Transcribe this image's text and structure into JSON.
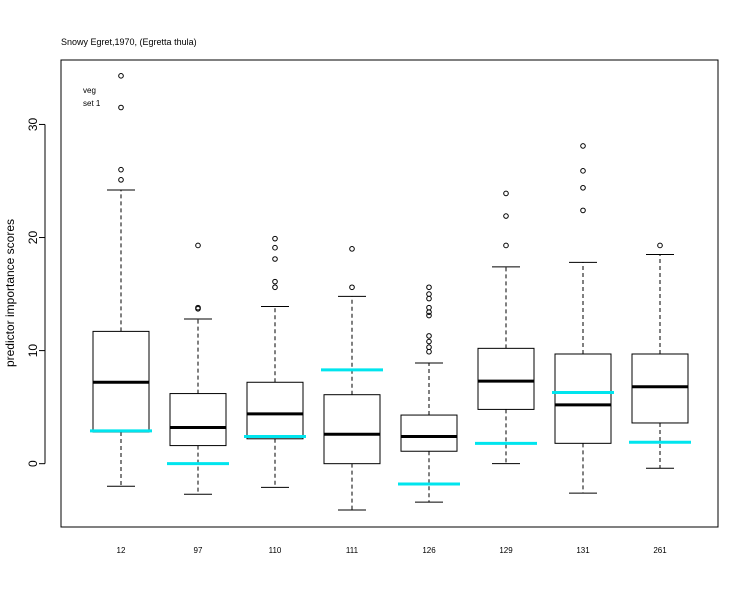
{
  "chart_data": {
    "type": "boxplot",
    "title": "Snowy Egret,1970, (Egretta thula)",
    "ylabel": "predictor importance scores",
    "xlabel": "",
    "ylim": [
      -5.6,
      35.7
    ],
    "yticks": [
      0,
      10,
      20,
      30
    ],
    "annotation": [
      "veg",
      "set 1"
    ],
    "annotation_color": "#0000cc",
    "reference_color": "#00e5ee",
    "categories": [
      "12",
      "97",
      "110",
      "111",
      "126",
      "129",
      "131",
      "261"
    ],
    "boxes": [
      {
        "whisker_low": -2.0,
        "q1": 2.8,
        "median": 7.2,
        "q3": 11.7,
        "whisker_high": 24.2,
        "outliers": [
          25.1,
          26.0,
          31.5,
          34.3
        ],
        "reference": 2.9
      },
      {
        "whisker_low": -2.7,
        "q1": 1.6,
        "median": 3.2,
        "q3": 6.2,
        "whisker_high": 12.8,
        "outliers": [
          13.7,
          13.8,
          19.3
        ],
        "reference": 0.0
      },
      {
        "whisker_low": -2.1,
        "q1": 2.2,
        "median": 4.4,
        "q3": 7.2,
        "whisker_high": 13.9,
        "outliers": [
          15.6,
          16.1,
          18.1,
          19.1,
          19.9
        ],
        "reference": 2.4
      },
      {
        "whisker_low": -4.1,
        "q1": 0.0,
        "median": 2.6,
        "q3": 6.1,
        "whisker_high": 14.8,
        "outliers": [
          15.6,
          19.0
        ],
        "reference": 8.3
      },
      {
        "whisker_low": -3.4,
        "q1": 1.1,
        "median": 2.4,
        "q3": 4.3,
        "whisker_high": 8.9,
        "outliers": [
          9.9,
          10.3,
          10.8,
          11.3,
          13.1,
          13.4,
          13.8,
          14.6,
          15.0,
          15.6
        ],
        "reference": -1.8
      },
      {
        "whisker_low": 0.0,
        "q1": 4.8,
        "median": 7.3,
        "q3": 10.2,
        "whisker_high": 17.4,
        "outliers": [
          19.3,
          21.9,
          23.9
        ],
        "reference": 1.8
      },
      {
        "whisker_low": -2.6,
        "q1": 1.8,
        "median": 5.2,
        "q3": 9.7,
        "whisker_high": 17.8,
        "outliers": [
          22.4,
          24.4,
          25.9,
          28.1
        ],
        "reference": 6.3
      },
      {
        "whisker_low": -0.4,
        "q1": 3.6,
        "median": 6.8,
        "q3": 9.7,
        "whisker_high": 18.5,
        "outliers": [
          19.3
        ],
        "reference": 1.9
      }
    ],
    "grid": false,
    "legend": "none"
  }
}
